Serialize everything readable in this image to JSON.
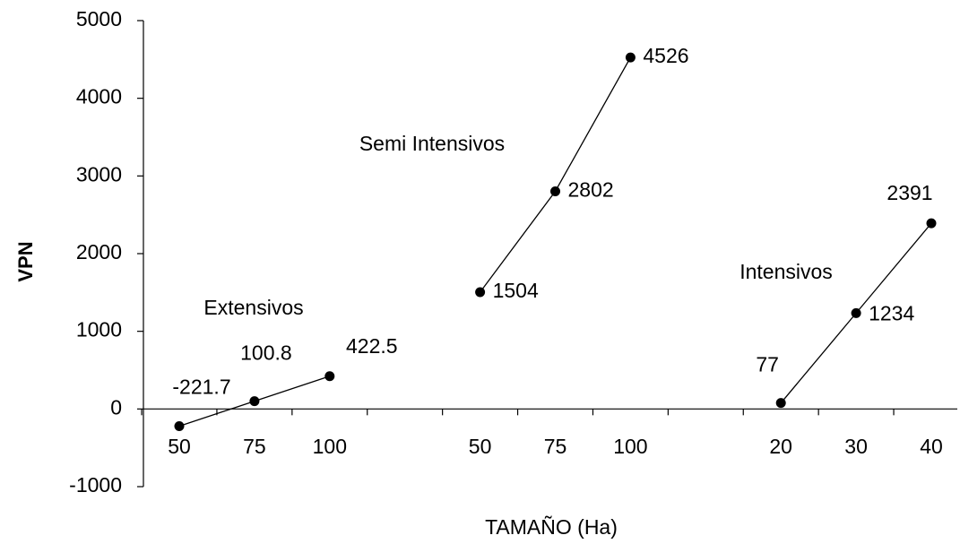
{
  "chart_data": {
    "type": "line",
    "x_label": "TAMAÑO (Ha)",
    "y_label": "VPN",
    "categories": [
      50,
      75,
      100,
      null,
      50,
      75,
      100,
      null,
      20,
      30,
      40
    ],
    "series": [
      {
        "name": "Extensivos",
        "color": "#000000",
        "values": [
          -221.7,
          100.8,
          422.5,
          null,
          null,
          null,
          null,
          null,
          null,
          null,
          null
        ]
      },
      {
        "name": "Semi Intensivos",
        "color": "#000000",
        "values": [
          null,
          null,
          null,
          null,
          1504,
          2802,
          4526,
          null,
          null,
          null,
          null
        ]
      },
      {
        "name": "Intensivos",
        "color": "#000000",
        "values": [
          null,
          null,
          null,
          null,
          null,
          null,
          null,
          null,
          77,
          1234,
          2391
        ]
      }
    ],
    "ylim": [
      -1000,
      5000
    ],
    "yticks": [
      -1000,
      0,
      1000,
      2000,
      3000,
      4000,
      5000
    ],
    "grid": false
  }
}
